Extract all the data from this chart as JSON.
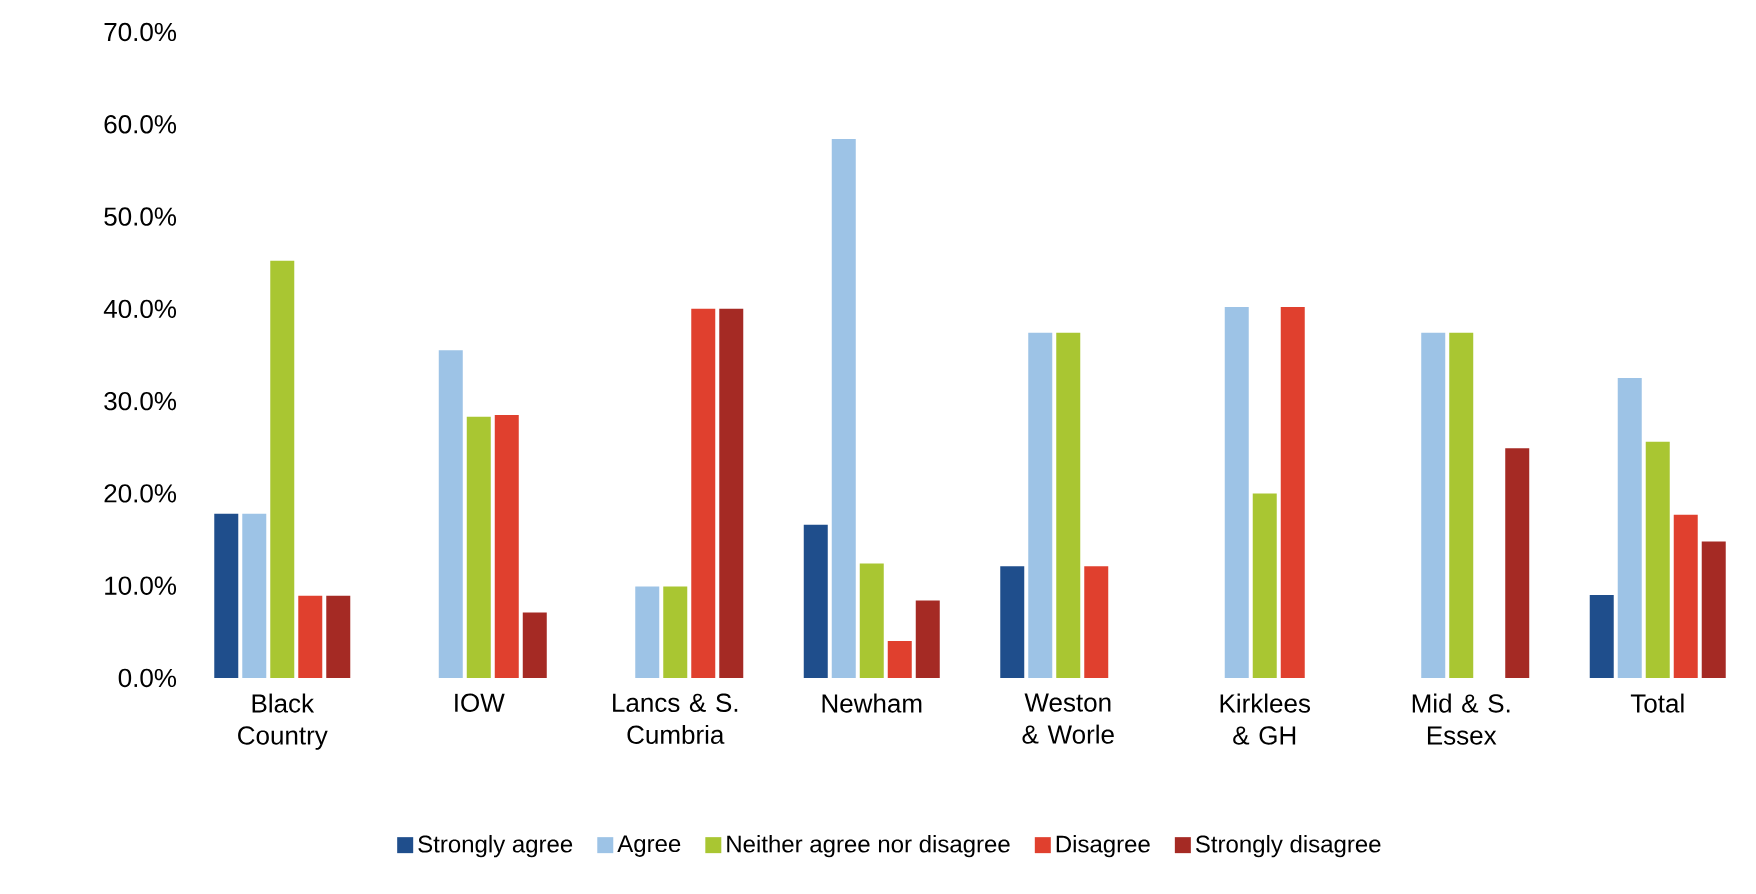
{
  "chart_data": {
    "type": "bar",
    "categories": [
      "Black Country",
      "IOW",
      "Lancs & S. Cumbria",
      "Newham",
      "Weston & Worle",
      "Kirklees & GH",
      "Mid & S. Essex",
      "Total"
    ],
    "series": [
      {
        "name": "Strongly agree",
        "color": "#1f4e8c",
        "values": [
          17.8,
          0,
          0,
          16.6,
          12.1,
          0,
          0,
          9.0
        ]
      },
      {
        "name": "Agree",
        "color": "#9dc3e6",
        "values": [
          17.8,
          35.5,
          9.9,
          58.4,
          37.4,
          40.2,
          37.4,
          32.5
        ]
      },
      {
        "name": "Neither agree nor disagree",
        "color": "#a9c632",
        "values": [
          45.2,
          28.3,
          9.9,
          12.4,
          37.4,
          20.0,
          37.4,
          25.6
        ]
      },
      {
        "name": "Disagree",
        "color": "#e0402e",
        "values": [
          8.9,
          28.5,
          40.0,
          4.0,
          12.1,
          40.2,
          0,
          17.7
        ]
      },
      {
        "name": "Strongly disagree",
        "color": "#a52a24",
        "values": [
          8.9,
          7.1,
          40.0,
          8.4,
          0,
          0,
          24.9,
          14.8
        ]
      }
    ],
    "ylim": [
      0,
      70
    ],
    "yticks": [
      {
        "value": 0,
        "label": "0.0%"
      },
      {
        "value": 10,
        "label": "10.0%"
      },
      {
        "value": 20,
        "label": "20.0%"
      },
      {
        "value": 30,
        "label": "30.0%"
      },
      {
        "value": 40,
        "label": "40.0%"
      },
      {
        "value": 50,
        "label": "50.0%"
      },
      {
        "value": 60,
        "label": "60.0%"
      },
      {
        "value": 70,
        "label": "70.0%"
      }
    ],
    "grid": false,
    "legend": "bottom"
  }
}
